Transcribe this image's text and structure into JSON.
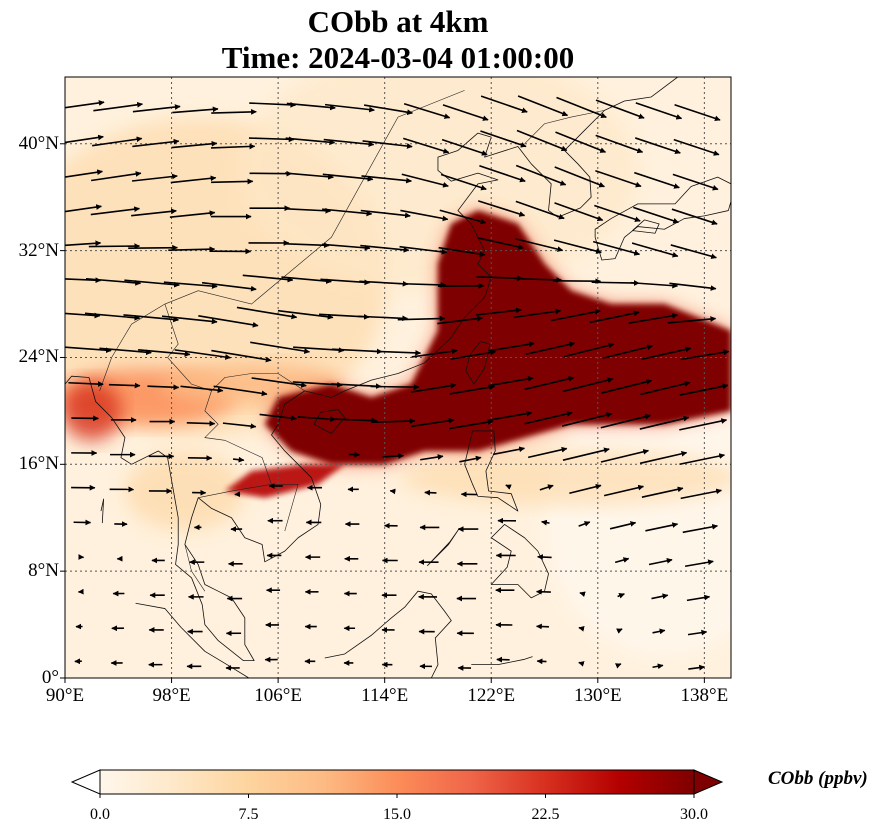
{
  "title": {
    "line1": "CObb at 4km",
    "line2": "Time: 2024-03-04 01:00:00"
  },
  "map": {
    "type": "geographic filled-contour map with wind vectors",
    "projection": "PlateCarree",
    "lon_range": [
      90,
      140
    ],
    "lat_range": [
      0,
      45
    ],
    "lat_ticks": [
      {
        "value": 0,
        "label": "0°"
      },
      {
        "value": 8,
        "label": "8°N"
      },
      {
        "value": 16,
        "label": "16°N"
      },
      {
        "value": 24,
        "label": "24°N"
      },
      {
        "value": 32,
        "label": "32°N"
      },
      {
        "value": 40,
        "label": "40°N"
      }
    ],
    "lon_ticks": [
      {
        "value": 90,
        "label": "90°E"
      },
      {
        "value": 98,
        "label": "98°E"
      },
      {
        "value": 106,
        "label": "106°E"
      },
      {
        "value": 114,
        "label": "114°E"
      },
      {
        "value": 122,
        "label": "122°E"
      },
      {
        "value": 130,
        "label": "130°E"
      },
      {
        "value": 138,
        "label": "138°E"
      }
    ],
    "gridlines": true,
    "gridline_style": "dotted",
    "features": [
      "coastlines",
      "country borders"
    ]
  },
  "chart_data": {
    "type": "heatmap",
    "variable": "CObb",
    "units": "ppbv",
    "level": "4km",
    "plume_approx": {
      "description": "High CObb (>=30 ppbv) plume over East China, East China Sea and West Pacific",
      "polygon_lonlat": [
        [
          110,
          22
        ],
        [
          113,
          21
        ],
        [
          116,
          22
        ],
        [
          118,
          26
        ],
        [
          118,
          31
        ],
        [
          119,
          34
        ],
        [
          121,
          35
        ],
        [
          124,
          34
        ],
        [
          126,
          31
        ],
        [
          128,
          29
        ],
        [
          131,
          28
        ],
        [
          135,
          28
        ],
        [
          140,
          26
        ],
        [
          140,
          20
        ],
        [
          135,
          19
        ],
        [
          128,
          19
        ],
        [
          121,
          17
        ],
        [
          117,
          17
        ],
        [
          114,
          16
        ],
        [
          110,
          16
        ],
        [
          107,
          17
        ],
        [
          105,
          19
        ],
        [
          106,
          21
        ]
      ],
      "secondary_lonlat": [
        [
          102,
          14
        ],
        [
          104,
          15.5
        ],
        [
          108,
          16
        ],
        [
          111,
          16
        ],
        [
          109,
          14.5
        ],
        [
          105,
          13.5
        ]
      ]
    },
    "wind_vectors_sample": [
      {
        "lon": 92,
        "lat": 38,
        "u": 20,
        "v": 3
      },
      {
        "lon": 98,
        "lat": 36,
        "u": 18,
        "v": 2
      },
      {
        "lon": 104,
        "lat": 34,
        "u": 16,
        "v": 0
      },
      {
        "lon": 112,
        "lat": 38,
        "u": 20,
        "v": -2
      },
      {
        "lon": 120,
        "lat": 40,
        "u": 18,
        "v": -6
      },
      {
        "lon": 128,
        "lat": 40,
        "u": 20,
        "v": -8
      },
      {
        "lon": 134,
        "lat": 38,
        "u": 18,
        "v": -6
      },
      {
        "lon": 96,
        "lat": 28,
        "u": 22,
        "v": -2
      },
      {
        "lon": 104,
        "lat": 26,
        "u": 24,
        "v": -4
      },
      {
        "lon": 112,
        "lat": 24,
        "u": 20,
        "v": -1
      },
      {
        "lon": 120,
        "lat": 22,
        "u": 18,
        "v": 3
      },
      {
        "lon": 130,
        "lat": 22,
        "u": 20,
        "v": 5
      },
      {
        "lon": 96,
        "lat": 18,
        "u": 10,
        "v": 0
      },
      {
        "lon": 108,
        "lat": 12,
        "u": -6,
        "v": 0
      },
      {
        "lon": 120,
        "lat": 10,
        "u": -8,
        "v": 0
      },
      {
        "lon": 100,
        "lat": 6,
        "u": -6,
        "v": 0
      }
    ]
  },
  "colorbar": {
    "colormap": "OrRd",
    "colors": [
      "#fff7ec",
      "#fee8c8",
      "#fdd49e",
      "#fdbb84",
      "#fc8d59",
      "#ef6548",
      "#d7301f",
      "#b30000",
      "#7f0000"
    ],
    "min": 0.0,
    "max": 30.0,
    "extend": "both",
    "ticks": [
      "0.0",
      "7.5",
      "15.0",
      "22.5",
      "30.0"
    ],
    "label": "CObb (ppbv)"
  }
}
